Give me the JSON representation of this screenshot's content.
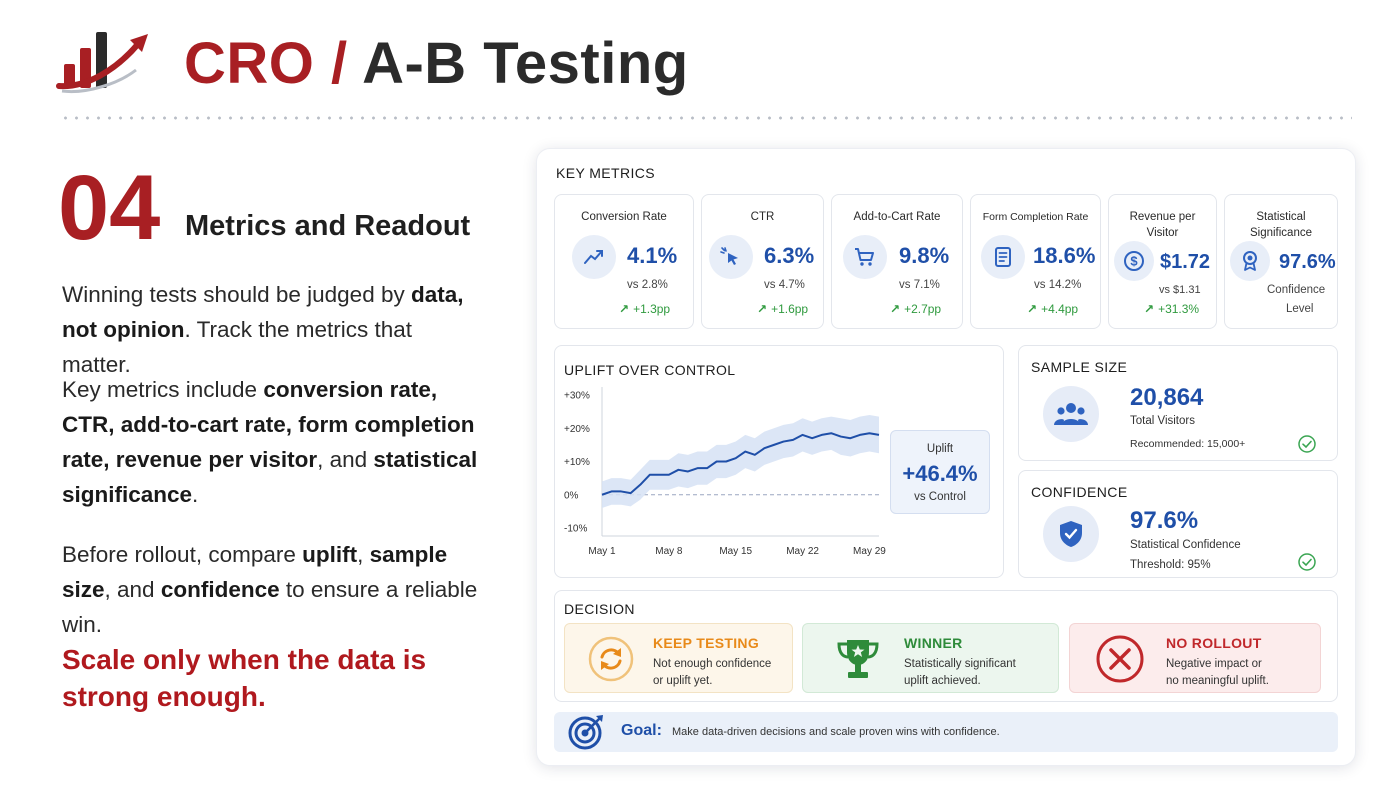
{
  "header": {
    "title_part1": "CRO /",
    "title_part2": "A-B Testing"
  },
  "section": {
    "number": "04",
    "title": "Metrics and Readout"
  },
  "paragraphs": {
    "p1": [
      "Winning tests should be judged by ",
      "data, not opinion",
      ". Track the metrics that matter."
    ],
    "p2": [
      "Key metrics include ",
      "conversion rate, CTR, add-to-cart rate, form completion rate, revenue per visitor",
      ", and ",
      "statistical significance",
      "."
    ],
    "p3": [
      "Before rollout, compare ",
      "uplift",
      ", ",
      "sample size",
      ", and ",
      "confidence",
      " to ensure a reliable win."
    ],
    "callout": "Scale only when the data is strong enough."
  },
  "dashboard": {
    "key_metrics_caption": "KEY METRICS",
    "metrics": [
      {
        "label": "Conversion Rate",
        "icon": "trend-up-icon",
        "value": "4.1%",
        "vs": "vs 2.8%",
        "delta": "+1.3pp"
      },
      {
        "label": "CTR",
        "icon": "cursor-click-icon",
        "value": "6.3%",
        "vs": "vs 4.7%",
        "delta": "+1.6pp"
      },
      {
        "label": "Add-to-Cart Rate",
        "icon": "cart-icon",
        "value": "9.8%",
        "vs": "vs 7.1%",
        "delta": "+2.7pp"
      },
      {
        "label": "Form Completion Rate",
        "icon": "form-icon",
        "value": "18.6%",
        "vs": "vs 14.2%",
        "delta": "+4.4pp"
      },
      {
        "label": "Revenue per Visitor",
        "icon": "dollar-icon",
        "value": "$1.72",
        "vs": "vs $1.31",
        "delta": "+31.3%"
      },
      {
        "label": "Statistical Significance",
        "icon": "award-icon",
        "value": "97.6%",
        "sub1": "Confidence",
        "sub2": "Level"
      }
    ],
    "uplift": {
      "caption": "UPLIFT OVER CONTROL",
      "box_label": "Uplift",
      "box_value": "+46.4%",
      "box_sub": "vs Control"
    },
    "sample": {
      "caption": "SAMPLE SIZE",
      "value": "20,864",
      "label": "Total Visitors",
      "recommended": "Recommended: 15,000+"
    },
    "confidence": {
      "caption": "CONFIDENCE",
      "value": "97.6%",
      "label": "Statistical Confidence",
      "threshold": "Threshold: 95%"
    },
    "decision": {
      "caption": "DECISION",
      "options": [
        {
          "title": "KEEP TESTING",
          "line1": "Not enough confidence",
          "line2": "or uplift yet.",
          "color": "#e88a1a",
          "bg": "#fdf6ea"
        },
        {
          "title": "WINNER",
          "line1": "Statistically significant",
          "line2": "uplift achieved.",
          "color": "#2e8b3a",
          "bg": "#ecf6ee"
        },
        {
          "title": "NO ROLLOUT",
          "line1": "Negative impact or",
          "line2": "no meaningful uplift.",
          "color": "#c0282b",
          "bg": "#fcecec"
        }
      ]
    },
    "goal": {
      "label": "Goal:",
      "text": "Make data-driven decisions and scale proven wins with confidence."
    }
  },
  "chart_data": {
    "type": "line",
    "title": "UPLIFT OVER CONTROL",
    "y_ticks": [
      "+30%",
      "+20%",
      "+10%",
      "0%",
      "-10%"
    ],
    "ylim": [
      -10,
      30
    ],
    "x_ticks": [
      "May 1",
      "May 8",
      "May 15",
      "May 22",
      "May 29"
    ],
    "x_tick_days": [
      1,
      8,
      15,
      22,
      29
    ],
    "xlim": [
      1,
      30
    ],
    "series": [
      {
        "x": [
          1,
          2,
          3,
          4,
          5,
          6,
          7,
          8,
          9,
          10,
          11,
          12,
          13,
          14,
          15,
          16,
          17,
          18,
          19,
          20,
          21,
          22,
          23,
          24,
          25,
          26,
          27,
          28,
          29,
          30
        ],
        "y": [
          0,
          1,
          1,
          0.5,
          3,
          6,
          6,
          6,
          7.5,
          7,
          8,
          8,
          10,
          10,
          11,
          13,
          12,
          14,
          15,
          16,
          16.5,
          18,
          17,
          18,
          18.5,
          17.5,
          17,
          18,
          18.5,
          18
        ],
        "band": [
          4,
          4,
          4,
          4,
          4.5,
          4.5,
          4.5,
          4.5,
          5,
          5,
          5,
          5,
          5,
          5,
          5,
          5,
          5,
          5,
          5,
          5,
          5,
          5,
          5,
          5,
          5,
          5.5,
          5.5,
          5.5,
          5.5,
          5.5
        ]
      }
    ],
    "baseline": 0,
    "colors": {
      "line": "#1f4fa8",
      "band": "#d6e2f5",
      "baseline": "#9aa6c0"
    }
  }
}
